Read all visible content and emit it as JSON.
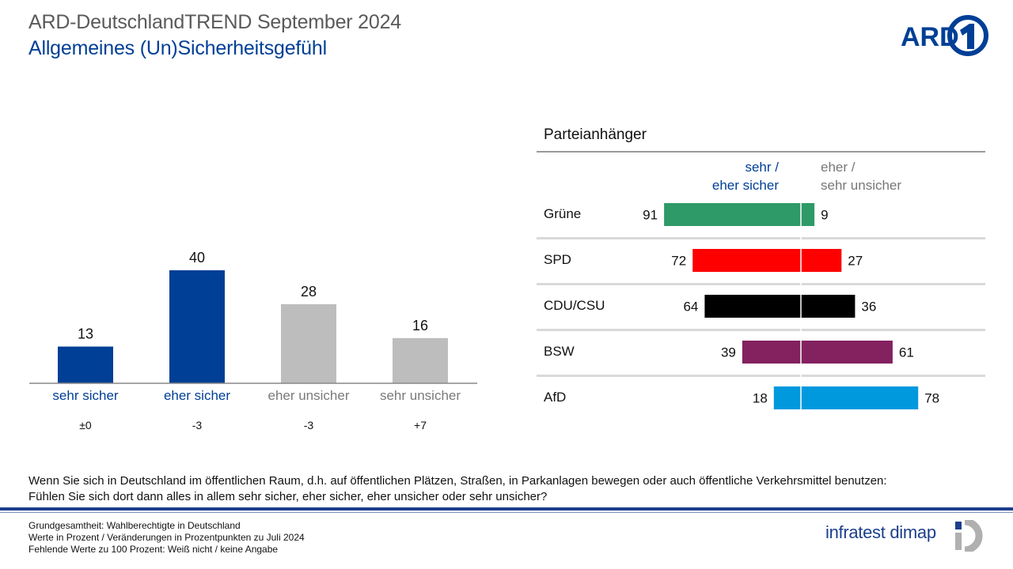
{
  "header": {
    "title": "ARD-DeutschlandTREND September 2024",
    "subtitle": "Allgemeines (Un)Sicherheitsgefühl",
    "logo_text": "ARD"
  },
  "colors": {
    "positive": "#003f96",
    "negative": "#bdbdbd",
    "axis": "#888888"
  },
  "chart_data": [
    {
      "type": "bar",
      "categories": [
        "sehr sicher",
        "eher sicher",
        "eher unsicher",
        "sehr unsicher"
      ],
      "values": [
        13,
        40,
        28,
        16
      ],
      "changes": [
        "±0",
        "-3",
        "-3",
        "+7"
      ],
      "colors": [
        "#003f96",
        "#003f96",
        "#bdbdbd",
        "#bdbdbd"
      ],
      "label_colors": [
        "#003f96",
        "#003f96",
        "#7a7a7a",
        "#7a7a7a"
      ],
      "ylim": [
        0,
        40
      ]
    },
    {
      "type": "bar",
      "title": "Parteianhänger",
      "series": [
        {
          "name": "sehr / eher sicher",
          "values": [
            91,
            72,
            64,
            39,
            18
          ]
        },
        {
          "name": "eher / sehr unsicher",
          "values": [
            9,
            27,
            36,
            61,
            78
          ]
        }
      ],
      "categories": [
        "Grüne",
        "SPD",
        "CDU/CSU",
        "BSW",
        "AfD"
      ],
      "colors": [
        "#2e9a67",
        "#ff0000",
        "#000000",
        "#84215f",
        "#0099dd"
      ],
      "xlim": [
        0,
        100
      ]
    }
  ],
  "right_panel": {
    "title": "Parteianhänger",
    "pos_head_line1": "sehr /",
    "pos_head_line2": "eher sicher",
    "neg_head_line1": "eher /",
    "neg_head_line2": "sehr unsicher"
  },
  "question": {
    "line1": "Wenn Sie sich in Deutschland im öffentlichen Raum, d.h. auf öffentlichen Plätzen, Straßen, in Parkanlagen bewegen oder auch öffentliche Verkehrsmittel benutzen:",
    "line2": "Fühlen Sie sich dort dann alles in allem sehr sicher, eher sicher, eher unsicher oder sehr unsicher?"
  },
  "footer": {
    "line1": "Grundgesamtheit:  Wahlberechtigte in Deutschland",
    "line2": "Werte in Prozent / Veränderungen  in Prozentpunkten zu Juli 2024",
    "line3": "Fehlende  Werte zu 100 Prozent: Weiß nicht / keine Angabe",
    "brand": "infratest dimap"
  }
}
